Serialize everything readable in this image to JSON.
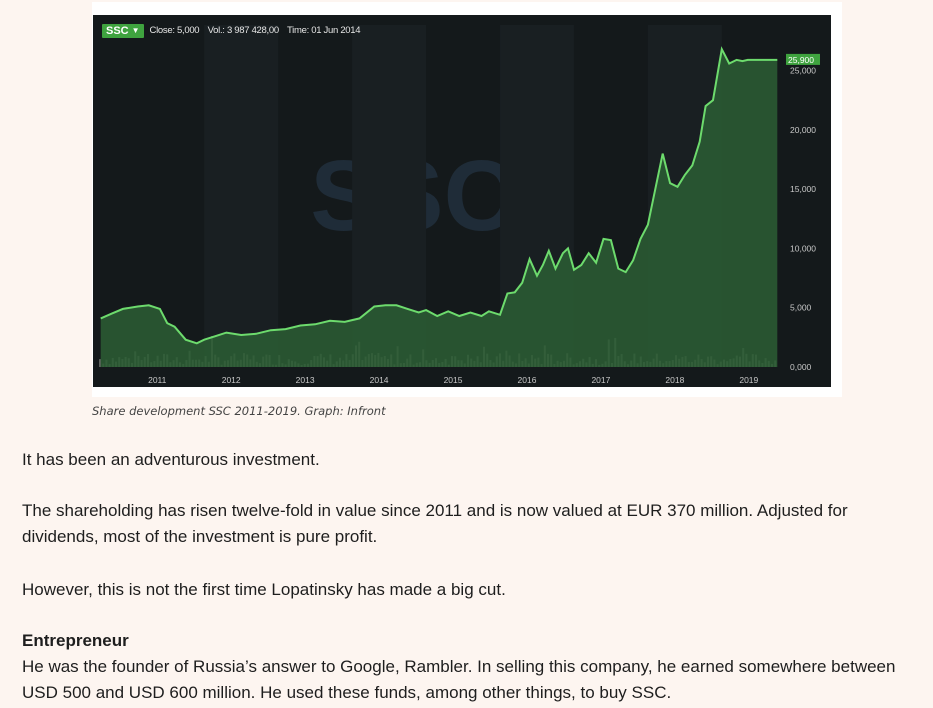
{
  "chart_header": {
    "ticker": "SSC",
    "close_label": "Close: 5,000",
    "volume_label": "Vol.: 3 987 428,00",
    "time_label": "Time: 01 Jun 2014",
    "watermark": "SSC",
    "last_value_label": "25,900"
  },
  "caption": "Share development SSC 2011-2019. Graph: Infront",
  "paragraphs": [
    "It has been an adventurous investment.",
    "The shareholding has risen twelve-fold in value since 2011 and is now valued at EUR 370 million. Adjusted for dividends, most of the investment is pure profit.",
    "However, this is not the first time Lopatinsky has made a big cut."
  ],
  "section": {
    "heading": "Entrepreneur",
    "body": "He was the founder of Russia’s answer to Google, Rambler. In selling this company, he earned somewhere between USD 500 and USD 600 million. He used these funds, among other things, to buy SSC."
  },
  "colors": {
    "chart_background": "#14191b",
    "line": "#6ddb6d",
    "area_fill": "#2c5e34",
    "volume_bar": "#6b6f6a",
    "accent": "#3fa33f"
  },
  "chart_data": {
    "type": "area",
    "title": "",
    "x_tick_labels": [
      "2011",
      "2012",
      "2013",
      "2014",
      "2015",
      "2016",
      "2017",
      "2018",
      "2019"
    ],
    "y_tick_labels": [
      "0,000",
      "5,000",
      "10,000",
      "15,000",
      "20,000",
      "25,000"
    ],
    "ylim": [
      0,
      28000
    ],
    "xlim": [
      2010.55,
      2019.8
    ],
    "grid": false,
    "series": [
      {
        "values_x": [
          2010.6,
          2010.75,
          2010.9,
          2011.1,
          2011.25,
          2011.4,
          2011.5,
          2011.6,
          2011.75,
          2011.9,
          2012.0,
          2012.15,
          2012.3,
          2012.5,
          2012.7,
          2012.9,
          2013.1,
          2013.3,
          2013.5,
          2013.7,
          2013.9,
          2014.1,
          2014.3,
          2014.45,
          2014.6,
          2014.75,
          2014.9,
          2015.0,
          2015.15,
          2015.3,
          2015.45,
          2015.6,
          2015.75,
          2015.85,
          2016.0,
          2016.1,
          2016.2,
          2016.3,
          2016.4,
          2016.5,
          2016.58,
          2016.66,
          2016.75,
          2016.85,
          2016.92,
          2017.0,
          2017.1,
          2017.2,
          2017.3,
          2017.4,
          2017.5,
          2017.6,
          2017.7,
          2017.8,
          2017.9,
          2018.0,
          2018.1,
          2018.2,
          2018.3,
          2018.4,
          2018.5,
          2018.6,
          2018.7,
          2018.78,
          2018.88,
          2019.0,
          2019.1,
          2019.2,
          2019.28,
          2019.35,
          2019.45,
          2019.55,
          2019.65,
          2019.75
        ],
        "values_y": [
          4100,
          4500,
          4900,
          5100,
          5200,
          4900,
          3700,
          3400,
          2300,
          2000,
          2300,
          2600,
          2900,
          2700,
          2800,
          3100,
          3200,
          3500,
          3600,
          3900,
          3800,
          4100,
          5100,
          5200,
          5200,
          4900,
          4600,
          4800,
          4300,
          4700,
          4300,
          4600,
          4300,
          4700,
          4400,
          6200,
          6300,
          7100,
          9100,
          7700,
          8600,
          9800,
          8300,
          9600,
          10000,
          8200,
          8600,
          9600,
          8800,
          10800,
          10700,
          8300,
          8000,
          9000,
          10800,
          12000,
          15000,
          18000,
          15500,
          15200,
          16200,
          17000,
          19000,
          22000,
          22500,
          26800,
          25600,
          25900,
          25800,
          25900,
          25900,
          25900,
          25900,
          25900
        ]
      }
    ]
  }
}
